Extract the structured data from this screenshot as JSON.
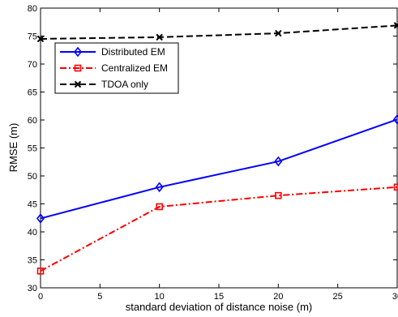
{
  "chart_data": {
    "type": "line",
    "title": "",
    "xlabel": "standard deviation of distance noise (m)",
    "ylabel": "RMSE (m)",
    "xlim": [
      0,
      30
    ],
    "ylim": [
      30,
      80
    ],
    "x_ticks": [
      0,
      5,
      10,
      15,
      20,
      25,
      30
    ],
    "y_ticks": [
      30,
      35,
      40,
      45,
      50,
      55,
      60,
      65,
      70,
      75,
      80
    ],
    "x_tick_labels": [
      "0",
      "5",
      "10",
      "15",
      "20",
      "25",
      "30"
    ],
    "y_tick_labels": [
      "30",
      "35",
      "40",
      "45",
      "50",
      "55",
      "60",
      "65",
      "70",
      "75",
      "80"
    ],
    "grid": false,
    "legend_position": "top-left",
    "x": [
      0,
      10,
      20,
      30
    ],
    "series": [
      {
        "name": "Distributed EM",
        "values": [
          42.4,
          48.0,
          52.6,
          60.1
        ],
        "color": "#0000ff",
        "line_style": "solid",
        "marker": "diamond"
      },
      {
        "name": "Centralized EM",
        "values": [
          33.0,
          44.5,
          46.5,
          48.0
        ],
        "color": "#ff0000",
        "line_style": "dash-dot",
        "marker": "square"
      },
      {
        "name": "TDOA only",
        "values": [
          74.5,
          74.8,
          75.5,
          76.9
        ],
        "color": "#000000",
        "line_style": "dashed",
        "marker": "x"
      }
    ]
  }
}
